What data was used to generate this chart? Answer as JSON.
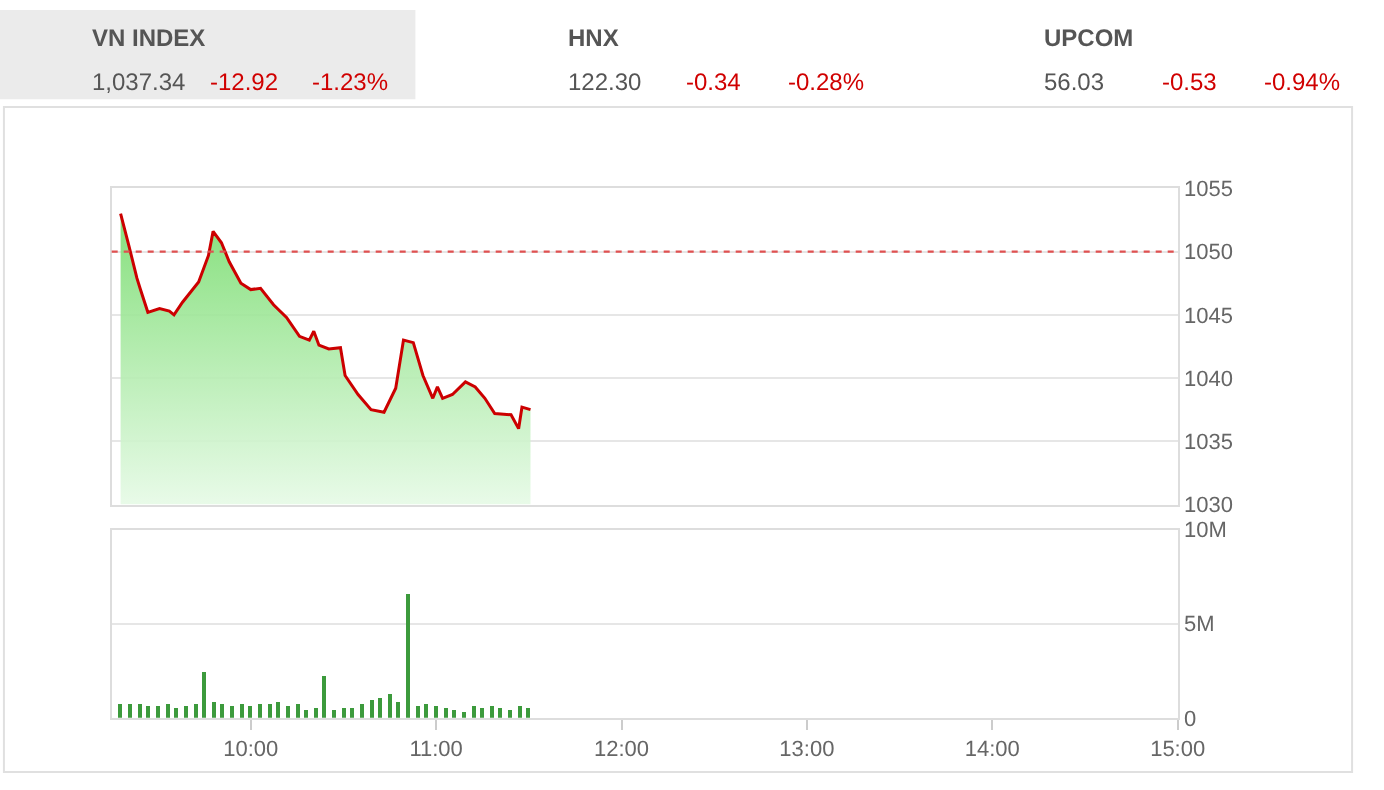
{
  "chart_data": [
    {
      "type": "other",
      "annotations": [
        "VN INDEX",
        "1,037.34",
        "-12.92",
        "-1.23%",
        "HNX",
        "122.30",
        "-0.34",
        "-0.28%",
        "UPCOM",
        "56.03",
        "-0.53",
        "-0.94%"
      ]
    },
    {
      "type": "area",
      "tick_labels": "y",
      "grid": "y",
      "xlim": [
        9.25,
        15
      ],
      "ylim": [
        1030,
        1055
      ],
      "yticks": [
        1030,
        1035,
        1040,
        1045,
        1050,
        1055
      ],
      "ref_lines": [
        {
          "axis": "y",
          "value": 1050,
          "color": "#e05050",
          "line_style": "dotted"
        }
      ],
      "series": [
        {
          "color": "#cc0000",
          "x": [
            9.298,
            9.344,
            9.386,
            9.403,
            9.445,
            9.508,
            9.561,
            9.586,
            9.632,
            9.719,
            9.772,
            9.797,
            9.842,
            9.884,
            9.947,
            10.0,
            10.053,
            10.123,
            10.193,
            10.263,
            10.316,
            10.34,
            10.368,
            10.421,
            10.484,
            10.509,
            10.579,
            10.649,
            10.719,
            10.782,
            10.824,
            10.877,
            10.929,
            10.982,
            11.007,
            11.035,
            11.088,
            11.158,
            11.211,
            11.263,
            11.316,
            11.404,
            11.445,
            11.463,
            11.509
          ],
          "values": [
            1053.0,
            1050.4,
            1047.9,
            1047.1,
            1045.2,
            1045.5,
            1045.3,
            1045.0,
            1046.0,
            1047.6,
            1049.7,
            1051.6,
            1050.7,
            1049.2,
            1047.5,
            1047.0,
            1047.1,
            1045.8,
            1044.8,
            1043.3,
            1043.0,
            1043.7,
            1042.6,
            1042.3,
            1042.4,
            1040.2,
            1038.7,
            1037.5,
            1037.3,
            1039.2,
            1043.0,
            1042.8,
            1040.2,
            1038.4,
            1039.3,
            1038.4,
            1038.7,
            1039.7,
            1039.3,
            1038.4,
            1037.2,
            1037.1,
            1036.0,
            1037.7,
            1037.5
          ]
        }
      ]
    },
    {
      "type": "bar",
      "grid": "y",
      "xlim": [
        9.25,
        15
      ],
      "xticks": [
        {
          "value": 10,
          "label": "10:00"
        },
        {
          "value": 11,
          "label": "11:00"
        },
        {
          "value": 12,
          "label": "12:00"
        },
        {
          "value": 13,
          "label": "13:00"
        },
        {
          "value": 14,
          "label": "14:00"
        },
        {
          "value": 15,
          "label": "15:00"
        }
      ],
      "ylim": [
        0,
        10
      ],
      "yticks": [
        0,
        {
          "value": 5,
          "label": "5M"
        },
        {
          "value": 10,
          "label": "10M"
        }
      ],
      "series": [
        {
          "color": "#3c9a3c",
          "x": [
            9.3,
            9.35,
            9.4,
            9.45,
            9.5,
            9.55,
            9.6,
            9.65,
            9.7,
            9.75,
            9.8,
            9.85,
            9.9,
            9.95,
            10.0,
            10.05,
            10.1,
            10.15,
            10.2,
            10.25,
            10.3,
            10.35,
            10.4,
            10.45,
            10.5,
            10.55,
            10.6,
            10.65,
            10.7,
            10.75,
            10.8,
            10.85,
            10.9,
            10.95,
            11.0,
            11.05,
            11.1,
            11.15,
            11.2,
            11.25,
            11.3,
            11.35,
            11.4,
            11.45,
            11.5
          ],
          "values": [
            0.8,
            0.7,
            0.7,
            0.6,
            0.6,
            0.7,
            0.5,
            0.6,
            0.8,
            2.4,
            0.9,
            0.8,
            0.6,
            0.7,
            0.6,
            0.8,
            0.8,
            0.9,
            0.6,
            0.7,
            0.4,
            0.5,
            2.2,
            0.4,
            0.5,
            0.5,
            0.8,
            1.0,
            1.1,
            1.3,
            0.9,
            6.6,
            0.6,
            0.8,
            0.6,
            0.5,
            0.4,
            0.3,
            0.6,
            0.5,
            0.6,
            0.5,
            0.4,
            0.6,
            0.5
          ]
        }
      ]
    }
  ]
}
